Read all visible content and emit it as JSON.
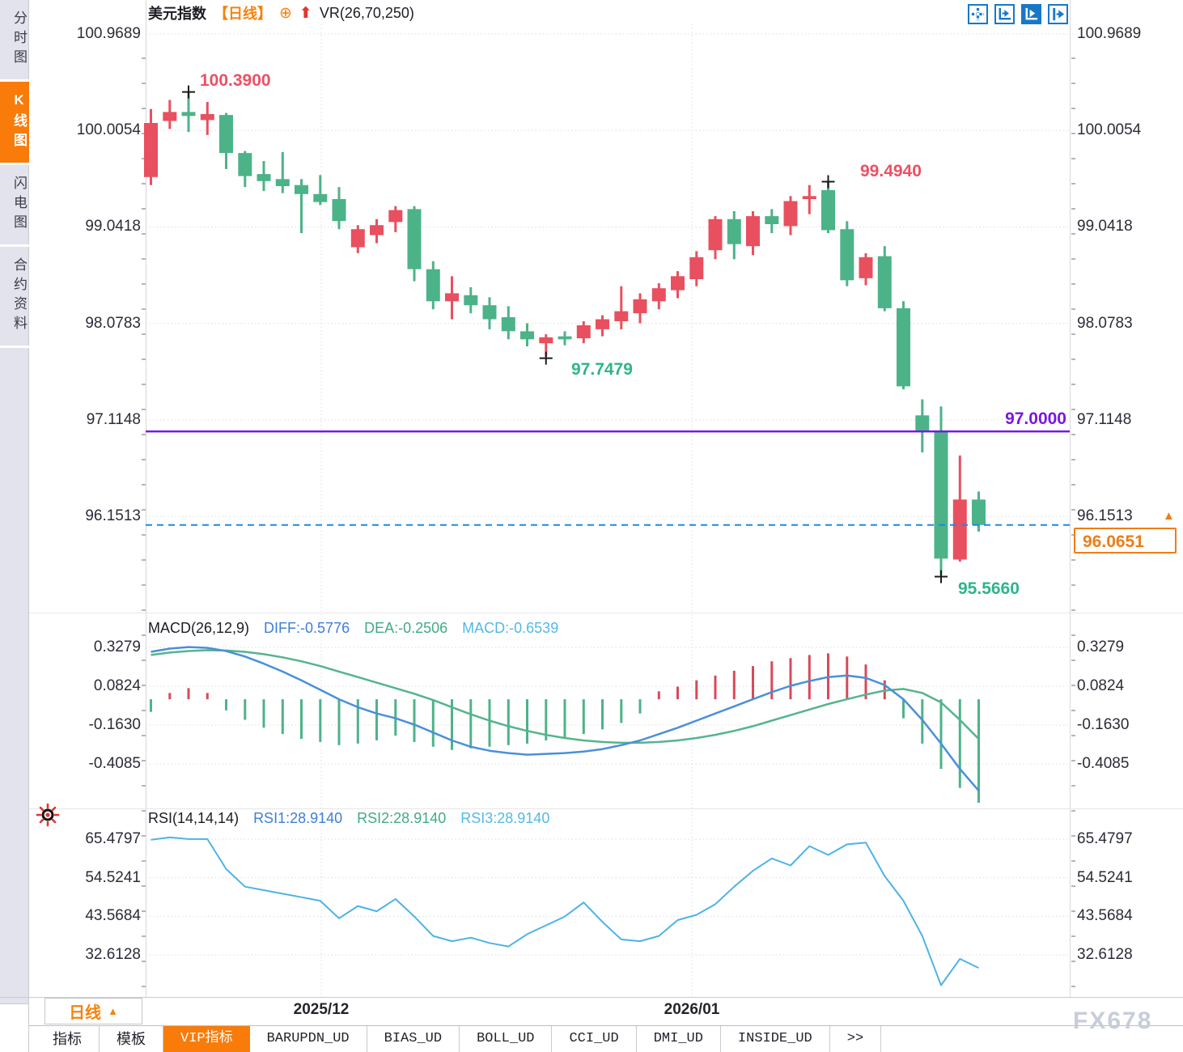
{
  "app": {
    "title": "美元指数",
    "period_tag": "【日线】",
    "add_icon": "⊕",
    "up_arrow_icon": "⬆",
    "overlay_indicator": "VR(26,70,250)",
    "watermark": "FX678"
  },
  "sidebar": {
    "items": [
      {
        "label": "分时图",
        "active": false
      },
      {
        "label": "K线图",
        "active": true
      },
      {
        "label": "闪电图",
        "active": false
      },
      {
        "label": "合约资料",
        "active": false
      }
    ]
  },
  "toolbar": {
    "icons": [
      "pan-crosshair-icon",
      "axis-zoom-icon",
      "axis-play-icon",
      "pan-right-icon"
    ],
    "active_index": 2
  },
  "period_selector": {
    "label": "日线",
    "arrow": "▲"
  },
  "x_axis": {
    "labels": [
      "2025/12",
      "2026/01"
    ]
  },
  "price_scale": {
    "labels": [
      "100.9689",
      "100.0054",
      "99.0418",
      "98.0783",
      "97.1148",
      "96.1513"
    ]
  },
  "annotations": {
    "high1": "100.3900",
    "high2": "99.4940",
    "low1": "97.7479",
    "low2": "95.5660",
    "hline_label": "97.0000",
    "last_price": "96.0651"
  },
  "macd_panel": {
    "title": "MACD(26,12,9)",
    "diff_label": "DIFF:-0.5776",
    "dea_label": "DEA:-0.2506",
    "macd_label": "MACD:-0.6539",
    "axis_labels": [
      "0.3279",
      "0.0824",
      "-0.1630",
      "-0.4085"
    ]
  },
  "rsi_panel": {
    "title": "RSI(14,14,14)",
    "rsi1_label": "RSI1:28.9140",
    "rsi2_label": "RSI2:28.9140",
    "rsi3_label": "RSI3:28.9140",
    "axis_labels": [
      "65.4797",
      "54.5241",
      "43.5684",
      "32.6128"
    ]
  },
  "bottom_tabs": {
    "items": [
      "指标",
      "模板",
      "VIP指标",
      "BARUPDN_UD",
      "BIAS_UD",
      "BOLL_UD",
      "CCI_UD",
      "DMI_UD",
      "INSIDE_UD",
      ">>"
    ],
    "active": "VIP指标"
  },
  "colors": {
    "up_candle": "#e8505f",
    "down_candle": "#4cb389",
    "accent_orange": "#f97b0a",
    "diff_line": "#4a8fd9",
    "dea_line": "#55b48d",
    "rsi_line": "#4db3e6",
    "support_line": "#7a18e2",
    "last_price_line": "#1e88e5",
    "last_price_box": "#ee7d18"
  },
  "chart_data": {
    "type": "candlestick",
    "symbol": "美元指数",
    "period": "日线",
    "main_axis_values": [
      100.9689,
      100.0054,
      99.0418,
      98.0783,
      97.1148,
      96.1513
    ],
    "support_line_value": 97.0,
    "last_price_value": 96.0651,
    "high1_value": 100.39,
    "high2_value": 99.494,
    "low1_value": 97.7479,
    "low2_value": 95.566,
    "marker_indices": {
      "high1": 2,
      "high2": 36,
      "low1": 21,
      "low2": 42
    },
    "x_gridline_dates": [
      "2025/12",
      "2026/01"
    ],
    "candles_ohlc": [
      [
        99.54,
        100.22,
        99.46,
        100.08
      ],
      [
        100.1,
        100.31,
        100.02,
        100.19
      ],
      [
        100.19,
        100.39,
        99.99,
        100.15
      ],
      [
        100.11,
        100.29,
        99.96,
        100.17
      ],
      [
        100.16,
        100.18,
        99.62,
        99.78
      ],
      [
        99.78,
        99.8,
        99.44,
        99.55
      ],
      [
        99.57,
        99.7,
        99.4,
        99.5
      ],
      [
        99.52,
        99.79,
        99.38,
        99.45
      ],
      [
        99.46,
        99.52,
        98.98,
        99.37
      ],
      [
        99.37,
        99.56,
        99.26,
        99.29
      ],
      [
        99.32,
        99.44,
        99.02,
        99.1
      ],
      [
        98.84,
        99.06,
        98.78,
        99.02
      ],
      [
        98.96,
        99.12,
        98.88,
        99.06
      ],
      [
        99.09,
        99.25,
        98.99,
        99.21
      ],
      [
        99.22,
        99.25,
        98.5,
        98.62
      ],
      [
        98.62,
        98.7,
        98.22,
        98.3
      ],
      [
        98.3,
        98.55,
        98.12,
        98.38
      ],
      [
        98.36,
        98.44,
        98.18,
        98.26
      ],
      [
        98.26,
        98.34,
        98.02,
        98.12
      ],
      [
        98.14,
        98.25,
        97.92,
        98.0
      ],
      [
        98.0,
        98.08,
        97.85,
        97.92
      ],
      [
        97.88,
        97.97,
        97.7479,
        97.94
      ],
      [
        97.95,
        98.0,
        97.86,
        97.92
      ],
      [
        97.93,
        98.1,
        97.88,
        98.06
      ],
      [
        98.02,
        98.16,
        97.95,
        98.12
      ],
      [
        98.1,
        98.45,
        98.02,
        98.2
      ],
      [
        98.18,
        98.38,
        98.08,
        98.32
      ],
      [
        98.3,
        98.48,
        98.22,
        98.43
      ],
      [
        98.41,
        98.6,
        98.33,
        98.55
      ],
      [
        98.52,
        98.8,
        98.45,
        98.74
      ],
      [
        98.81,
        99.15,
        98.72,
        99.12
      ],
      [
        99.12,
        99.2,
        98.72,
        98.87
      ],
      [
        98.85,
        99.2,
        98.76,
        99.15
      ],
      [
        99.15,
        99.22,
        98.98,
        99.07
      ],
      [
        99.05,
        99.35,
        98.96,
        99.3
      ],
      [
        99.32,
        99.46,
        99.17,
        99.35
      ],
      [
        99.41,
        99.494,
        98.98,
        99.01
      ],
      [
        99.02,
        99.1,
        98.45,
        98.51
      ],
      [
        98.53,
        98.78,
        98.46,
        98.74
      ],
      [
        98.75,
        98.85,
        98.2,
        98.23
      ],
      [
        98.23,
        98.3,
        97.42,
        97.45
      ],
      [
        97.16,
        97.32,
        96.79,
        97.0
      ],
      [
        97.01,
        97.25,
        95.566,
        95.73
      ],
      [
        95.72,
        96.76,
        95.7,
        96.32
      ],
      [
        96.32,
        96.4,
        96.0,
        96.0651
      ]
    ],
    "macd": {
      "axis_values": [
        0.3279,
        0.0824,
        -0.163,
        -0.4085
      ],
      "diff": [
        0.3,
        0.32,
        0.33,
        0.325,
        0.305,
        0.27,
        0.225,
        0.175,
        0.12,
        0.06,
        0.0,
        -0.05,
        -0.09,
        -0.12,
        -0.16,
        -0.21,
        -0.26,
        -0.3,
        -0.325,
        -0.34,
        -0.35,
        -0.345,
        -0.34,
        -0.33,
        -0.315,
        -0.29,
        -0.26,
        -0.22,
        -0.18,
        -0.135,
        -0.09,
        -0.045,
        0.0,
        0.045,
        0.085,
        0.115,
        0.14,
        0.15,
        0.135,
        0.09,
        0.0,
        -0.13,
        -0.28,
        -0.44,
        -0.5776
      ],
      "dea": [
        0.28,
        0.295,
        0.305,
        0.31,
        0.308,
        0.3,
        0.285,
        0.265,
        0.24,
        0.21,
        0.175,
        0.14,
        0.105,
        0.07,
        0.035,
        -0.005,
        -0.05,
        -0.095,
        -0.135,
        -0.17,
        -0.2,
        -0.225,
        -0.245,
        -0.26,
        -0.27,
        -0.275,
        -0.275,
        -0.27,
        -0.26,
        -0.245,
        -0.225,
        -0.2,
        -0.17,
        -0.135,
        -0.1,
        -0.065,
        -0.03,
        0.0,
        0.03,
        0.055,
        0.065,
        0.04,
        -0.02,
        -0.13,
        -0.2506
      ],
      "hist": [
        -0.08,
        0.04,
        0.07,
        0.04,
        -0.07,
        -0.13,
        -0.18,
        -0.22,
        -0.25,
        -0.27,
        -0.29,
        -0.28,
        -0.26,
        -0.23,
        -0.27,
        -0.3,
        -0.32,
        -0.31,
        -0.3,
        -0.29,
        -0.28,
        -0.26,
        -0.24,
        -0.22,
        -0.19,
        -0.15,
        -0.09,
        0.05,
        0.08,
        0.12,
        0.15,
        0.18,
        0.21,
        0.24,
        0.26,
        0.28,
        0.29,
        0.27,
        0.22,
        0.12,
        -0.12,
        -0.28,
        -0.44,
        -0.56,
        -0.654
      ]
    },
    "rsi": {
      "axis_values": [
        65.4797,
        54.5241,
        43.5684,
        32.6128
      ],
      "values": [
        65.3,
        66.0,
        65.5,
        65.5,
        57.0,
        52.0,
        51.0,
        50.0,
        49.0,
        48.0,
        43.0,
        46.5,
        45.0,
        48.5,
        43.5,
        38.0,
        36.5,
        37.5,
        36.0,
        35.0,
        38.5,
        41.0,
        43.5,
        47.5,
        42.0,
        37.0,
        36.5,
        38.0,
        42.5,
        44.0,
        47.0,
        52.0,
        56.5,
        60.0,
        58.0,
        63.5,
        61.0,
        64.0,
        64.5,
        55.0,
        48.0,
        38.0,
        24.0,
        31.5,
        28.914
      ]
    }
  }
}
